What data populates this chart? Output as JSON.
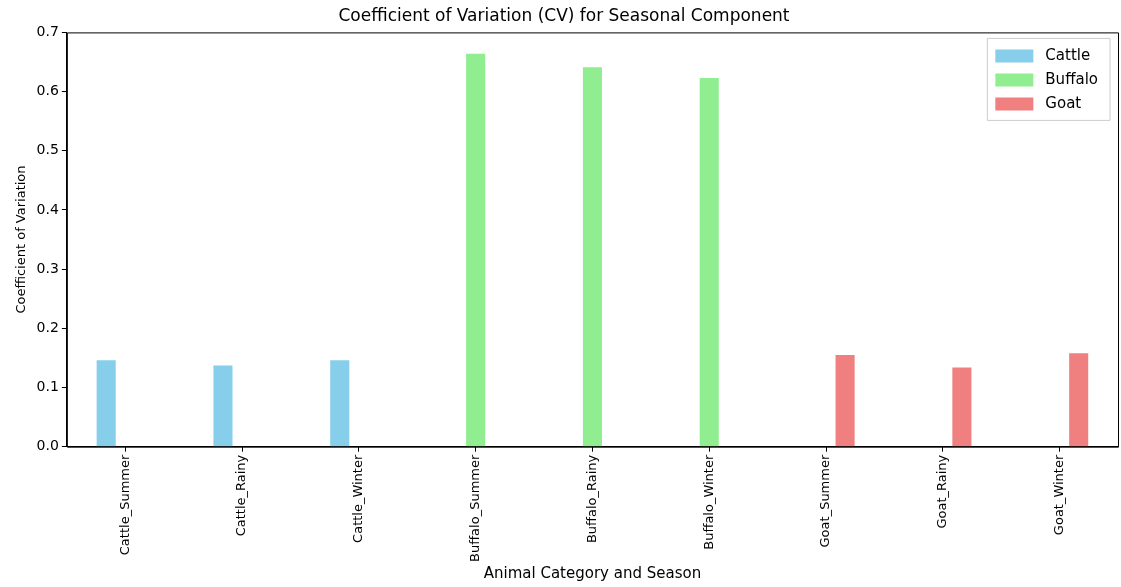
{
  "chart_data": {
    "type": "bar",
    "title": "Coefficient of Variation (CV) for Seasonal Component",
    "xlabel": "Animal Category and Season",
    "ylabel": "Coefficient of Variation",
    "categories": [
      "Cattle_Summer",
      "Cattle_Rainy",
      "Cattle_Winter",
      "Buffalo_Summer",
      "Buffalo_Rainy",
      "Buffalo_Winter",
      "Goat_Summer",
      "Goat_Rainy",
      "Goat_Winter"
    ],
    "series": [
      {
        "name": "Cattle",
        "color": "#87ceeb",
        "values": [
          0.146,
          0.137,
          0.146,
          null,
          null,
          null,
          null,
          null,
          null
        ]
      },
      {
        "name": "Buffalo",
        "color": "#90ee90",
        "values": [
          null,
          null,
          null,
          0.664,
          0.641,
          0.623,
          null,
          null,
          null
        ]
      },
      {
        "name": "Goat",
        "color": "#f08080",
        "values": [
          null,
          null,
          null,
          null,
          null,
          null,
          0.155,
          0.134,
          0.158
        ]
      }
    ],
    "ylim": [
      0,
      0.7
    ],
    "yticks": [
      {
        "value": 0,
        "label": "0.0"
      },
      0.1,
      0.2,
      0.3,
      0.4,
      0.5,
      0.6,
      0.7
    ],
    "grid": false,
    "legend": "top right"
  }
}
